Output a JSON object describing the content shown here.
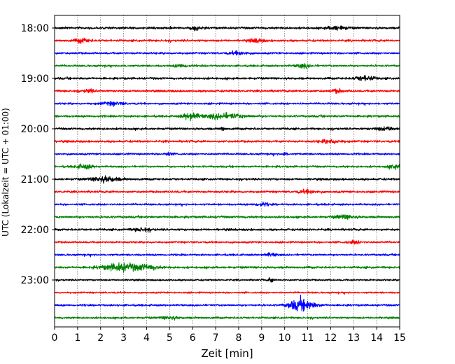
{
  "chart_data": {
    "type": "line",
    "title": "",
    "xlabel": "Zeit  [min]",
    "ylabel": "UTC (Lokalzeit = UTC + 01:00)",
    "xlim": [
      0,
      15
    ],
    "x_ticks": [
      0,
      1,
      2,
      3,
      4,
      5,
      6,
      7,
      8,
      9,
      10,
      11,
      12,
      13,
      14,
      15
    ],
    "y_tick_labels": [
      "18:00",
      "19:00",
      "20:00",
      "21:00",
      "22:00",
      "23:00"
    ],
    "grid": "vertical dotted",
    "trace_interval_minutes": 15,
    "trace_colors_cycle": [
      "#000000",
      "#ff0000",
      "#0000ff",
      "#008000"
    ],
    "traces": [
      {
        "start": "18:00",
        "color": "#000000",
        "amplitude": 1.0,
        "events": [
          {
            "x": 6.1,
            "amp": 1.5,
            "width": 0.2
          },
          {
            "x": 12.3,
            "amp": 1.8,
            "width": 0.4
          }
        ]
      },
      {
        "start": "18:15",
        "color": "#ff0000",
        "amplitude": 1.0,
        "events": [
          {
            "x": 1.2,
            "amp": 1.8,
            "width": 0.3
          },
          {
            "x": 8.8,
            "amp": 1.5,
            "width": 0.3
          }
        ]
      },
      {
        "start": "18:30",
        "color": "#0000ff",
        "amplitude": 0.9,
        "events": [
          {
            "x": 8.0,
            "amp": 1.4,
            "width": 0.4
          }
        ]
      },
      {
        "start": "18:45",
        "color": "#008000",
        "amplitude": 0.9,
        "events": [
          {
            "x": 10.8,
            "amp": 1.8,
            "width": 0.3
          },
          {
            "x": 5.5,
            "amp": 1.3,
            "width": 0.3
          }
        ]
      },
      {
        "start": "19:00",
        "color": "#000000",
        "amplitude": 1.0,
        "events": [
          {
            "x": 13.5,
            "amp": 2.2,
            "width": 0.4
          }
        ]
      },
      {
        "start": "19:15",
        "color": "#ff0000",
        "amplitude": 1.0,
        "events": [
          {
            "x": 1.5,
            "amp": 1.6,
            "width": 0.2
          },
          {
            "x": 12.3,
            "amp": 1.6,
            "width": 0.2
          }
        ]
      },
      {
        "start": "19:30",
        "color": "#0000ff",
        "amplitude": 0.9,
        "events": [
          {
            "x": 2.5,
            "amp": 1.5,
            "width": 0.5
          }
        ]
      },
      {
        "start": "19:45",
        "color": "#008000",
        "amplitude": 1.0,
        "events": [
          {
            "x": 5.9,
            "amp": 3.5,
            "width": 0.3
          },
          {
            "x": 7.3,
            "amp": 2.2,
            "width": 0.9
          }
        ]
      },
      {
        "start": "20:00",
        "color": "#000000",
        "amplitude": 1.0,
        "events": [
          {
            "x": 7.3,
            "amp": 1.6,
            "width": 0.1
          },
          {
            "x": 14.4,
            "amp": 1.5,
            "width": 0.5
          }
        ]
      },
      {
        "start": "20:15",
        "color": "#ff0000",
        "amplitude": 1.0,
        "events": [
          {
            "x": 12.0,
            "amp": 1.4,
            "width": 0.5
          }
        ]
      },
      {
        "start": "20:30",
        "color": "#0000ff",
        "amplitude": 0.9,
        "events": [
          {
            "x": 10.0,
            "amp": 1.6,
            "width": 0.1
          },
          {
            "x": 4.9,
            "amp": 1.3,
            "width": 0.2
          }
        ]
      },
      {
        "start": "20:45",
        "color": "#008000",
        "amplitude": 0.9,
        "events": [
          {
            "x": 1.3,
            "amp": 1.8,
            "width": 0.4
          },
          {
            "x": 14.8,
            "amp": 1.5,
            "width": 0.3
          }
        ]
      },
      {
        "start": "21:00",
        "color": "#000000",
        "amplitude": 1.0,
        "events": [
          {
            "x": 2.2,
            "amp": 2.2,
            "width": 0.6
          }
        ]
      },
      {
        "start": "21:15",
        "color": "#ff0000",
        "amplitude": 1.0,
        "events": [
          {
            "x": 11.0,
            "amp": 1.3,
            "width": 0.4
          }
        ]
      },
      {
        "start": "21:30",
        "color": "#0000ff",
        "amplitude": 0.9,
        "events": [
          {
            "x": 9.0,
            "amp": 1.3,
            "width": 0.3
          }
        ]
      },
      {
        "start": "21:45",
        "color": "#008000",
        "amplitude": 1.0,
        "events": [
          {
            "x": 12.6,
            "amp": 1.6,
            "width": 0.4
          }
        ]
      },
      {
        "start": "22:00",
        "color": "#000000",
        "amplitude": 1.0,
        "events": [
          {
            "x": 3.8,
            "amp": 1.3,
            "width": 0.4
          }
        ]
      },
      {
        "start": "22:15",
        "color": "#ff0000",
        "amplitude": 0.9,
        "events": [
          {
            "x": 13.0,
            "amp": 1.3,
            "width": 0.3
          }
        ]
      },
      {
        "start": "22:30",
        "color": "#0000ff",
        "amplitude": 0.9,
        "events": [
          {
            "x": 9.4,
            "amp": 1.3,
            "width": 0.3
          }
        ]
      },
      {
        "start": "22:45",
        "color": "#008000",
        "amplitude": 1.0,
        "events": [
          {
            "x": 2.9,
            "amp": 3.2,
            "width": 0.8
          },
          {
            "x": 4.0,
            "amp": 1.8,
            "width": 0.5
          }
        ]
      },
      {
        "start": "23:00",
        "color": "#000000",
        "amplitude": 0.8,
        "events": [
          {
            "x": 9.4,
            "amp": 3.0,
            "width": 0.08
          }
        ]
      },
      {
        "start": "23:15",
        "color": "#ff0000",
        "amplitude": 0.8,
        "events": []
      },
      {
        "start": "23:30",
        "color": "#0000ff",
        "amplitude": 0.9,
        "events": [
          {
            "x": 10.6,
            "amp": 3.8,
            "width": 0.5
          },
          {
            "x": 11.0,
            "amp": 1.8,
            "width": 0.5
          }
        ]
      },
      {
        "start": "23:45",
        "color": "#008000",
        "amplitude": 0.9,
        "events": [
          {
            "x": 5.0,
            "amp": 1.2,
            "width": 0.4
          }
        ]
      }
    ]
  }
}
